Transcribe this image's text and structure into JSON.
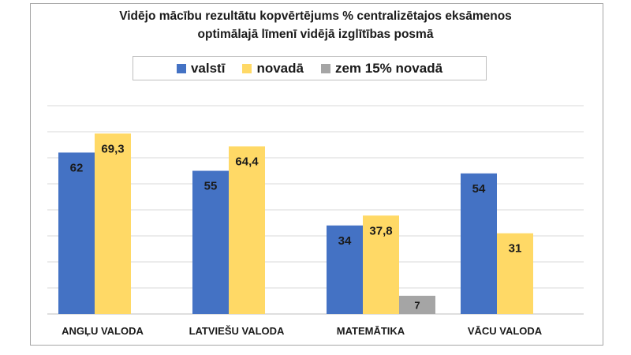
{
  "chart_data": {
    "type": "bar",
    "title": "Vidējo mācību rezultātu kopvērtējums % centralizētajos eksāmenos",
    "subtitle": "optimālajā līmenī vidējā izglītības posmā",
    "categories": [
      "ANGĻU VALODA",
      "LATVIEŠU VALODA",
      "MATEMĀTIKA",
      "VĀCU VALODA"
    ],
    "series": [
      {
        "name": "valstī",
        "color": "#4472c4",
        "values": [
          62,
          55,
          34,
          54
        ],
        "labels": [
          "62",
          "55",
          "34",
          "54"
        ]
      },
      {
        "name": "novadā",
        "color": "#ffd966",
        "values": [
          69.3,
          64.4,
          37.8,
          31
        ],
        "labels": [
          "69,3",
          "64,4",
          "37,8",
          "31"
        ]
      },
      {
        "name": "zem 15% novadā",
        "color": "#a5a5a5",
        "values": [
          null,
          null,
          7,
          null
        ],
        "labels": [
          "",
          "",
          "7",
          ""
        ]
      }
    ],
    "ylim": [
      0,
      80
    ],
    "grid": true,
    "legend_position": "top",
    "xlabel": "",
    "ylabel": ""
  }
}
